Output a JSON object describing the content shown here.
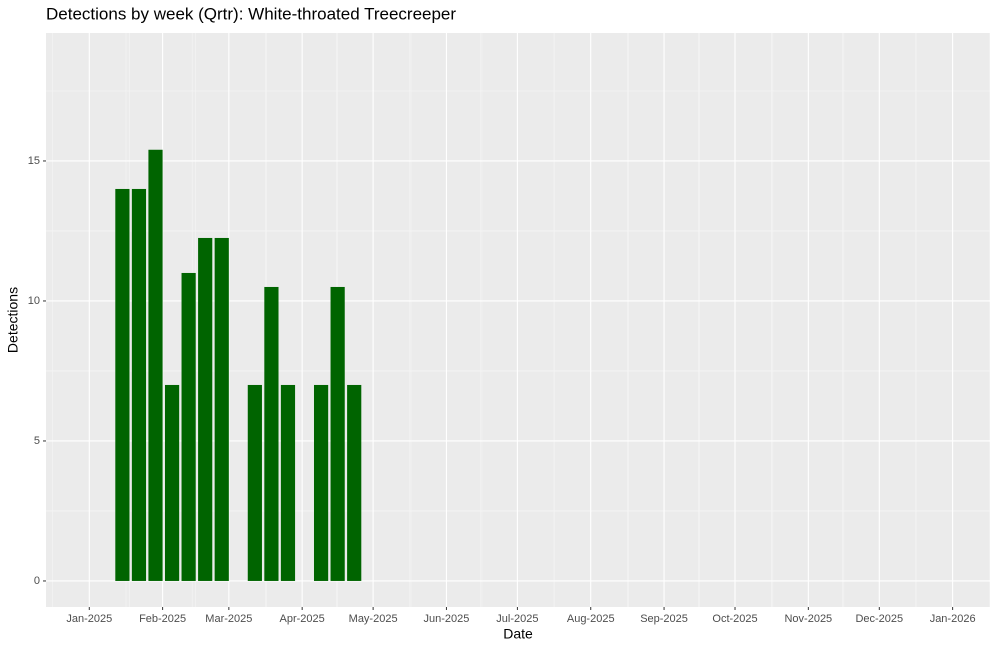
{
  "chart_data": {
    "type": "bar",
    "title": "Detections by week (Qrtr): White-throated Treecreeper",
    "x_label": "Date",
    "y_label": "Detections",
    "x": [
      14,
      21,
      28,
      35,
      42,
      49,
      56,
      70,
      77,
      84,
      98,
      105,
      112
    ],
    "values": [
      14,
      14,
      15.4,
      7,
      11,
      12.25,
      12.25,
      7,
      10.5,
      7,
      7,
      10.5,
      7
    ],
    "bar_width": 6,
    "color": "#006400",
    "xlim": [
      -18.3,
      380.8
    ],
    "xticks": [
      {
        "value": 0,
        "label": "Jan-2025"
      },
      {
        "value": 31,
        "label": "Feb-2025"
      },
      {
        "value": 59,
        "label": "Mar-2025"
      },
      {
        "value": 90,
        "label": "Apr-2025"
      },
      {
        "value": 120,
        "label": "May-2025"
      },
      {
        "value": 151,
        "label": "Jun-2025"
      },
      {
        "value": 181,
        "label": "Jul-2025"
      },
      {
        "value": 212,
        "label": "Aug-2025"
      },
      {
        "value": 243,
        "label": "Sep-2025"
      },
      {
        "value": 273,
        "label": "Oct-2025"
      },
      {
        "value": 304,
        "label": "Nov-2025"
      },
      {
        "value": 334,
        "label": "Dec-2025"
      },
      {
        "value": 365,
        "label": "Jan-2026"
      }
    ],
    "ylim": [
      -0.93,
      19.57
    ],
    "yticks": [
      0,
      5,
      10,
      15
    ],
    "grid": true
  }
}
